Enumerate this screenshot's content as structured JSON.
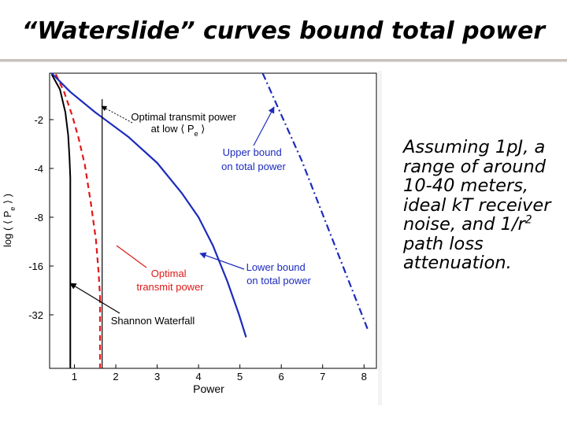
{
  "slide": {
    "title": "“Waterslide” curves bound total power",
    "side_text_before": "Assuming 1pJ, a  range of around 10-40 meters, ideal kT receiver noise, and 1/r",
    "side_text_sup": "2",
    "side_text_after": " path loss attenuation."
  },
  "colors": {
    "blue": "#1c2bbd",
    "red": "#e01818",
    "black": "#000000"
  },
  "chart_data": {
    "type": "line",
    "xlabel": "Power",
    "ylabel": "log ( ⟨ P",
    "ylabel_sub": "e",
    "ylabel_end": " ⟩ )",
    "x_ticks": [
      "1",
      "2",
      "3",
      "4",
      "5",
      "6",
      "7",
      "8"
    ],
    "y_ticks": [
      "-2",
      "-4",
      "-8",
      "-16",
      "-32"
    ],
    "xlim": [
      0.4,
      8.3
    ],
    "y_scale": "log2 of magnitude",
    "grid": false,
    "series": [
      {
        "name": "Shannon Waterfall",
        "style": "solid",
        "color": "black",
        "points": [
          [
            0.45,
            -1.05
          ],
          [
            0.65,
            -1.3
          ],
          [
            0.78,
            -1.8
          ],
          [
            0.85,
            -2.5
          ],
          [
            0.88,
            -3.4
          ],
          [
            0.9,
            -4.6
          ]
        ],
        "vertical_x": 0.9
      },
      {
        "name": "Optimal transmit power",
        "style": "dashed",
        "color": "red",
        "points": [
          [
            0.55,
            -1.05
          ],
          [
            0.75,
            -1.35
          ],
          [
            0.95,
            -1.9
          ],
          [
            1.1,
            -2.6
          ],
          [
            1.25,
            -3.8
          ],
          [
            1.4,
            -6.6
          ],
          [
            1.52,
            -11
          ],
          [
            1.58,
            -17
          ],
          [
            1.62,
            -25
          ]
        ],
        "vertical_x": 1.62
      },
      {
        "name": "Lower bound on total power",
        "style": "solid",
        "color": "blue",
        "points": [
          [
            0.45,
            -1.0
          ],
          [
            0.9,
            -1.35
          ],
          [
            1.5,
            -1.8
          ],
          [
            2.3,
            -2.55
          ],
          [
            3.0,
            -3.7
          ],
          [
            3.6,
            -5.7
          ],
          [
            4.0,
            -8.0
          ],
          [
            4.35,
            -12
          ],
          [
            4.7,
            -20
          ],
          [
            4.98,
            -32
          ],
          [
            5.15,
            -44
          ]
        ]
      },
      {
        "name": "Upper bound on total power",
        "style": "dash-dot",
        "color": "blue",
        "points": [
          [
            5.55,
            -1.0
          ],
          [
            6.5,
            -3.6
          ],
          [
            7.4,
            -14
          ],
          [
            8.1,
            -40
          ]
        ]
      },
      {
        "name": "Optimal transmit power at low ⟨ P e ⟩",
        "style": "solid",
        "color": "black",
        "vertical_x": 1.67
      }
    ],
    "annotations": [
      {
        "text_lines": [
          "Optimal transmit power",
          "at low ⟨ P",
          "e",
          " ⟩"
        ],
        "color": "black",
        "target_series": "Optimal transmit power at low ⟨ P e ⟩"
      },
      {
        "text_lines": [
          "Upper bound",
          "on total power"
        ],
        "color": "blue",
        "target_series": "Upper bound on total power"
      },
      {
        "text_lines": [
          "Optimal",
          "transmit power"
        ],
        "color": "red",
        "target_series": "Optimal transmit power"
      },
      {
        "text_lines": [
          "Lower bound",
          "on total power"
        ],
        "color": "blue",
        "target_series": "Lower bound on total power"
      },
      {
        "text_lines": [
          "Shannon Waterfall"
        ],
        "color": "black",
        "target_series": "Shannon Waterfall"
      }
    ]
  }
}
